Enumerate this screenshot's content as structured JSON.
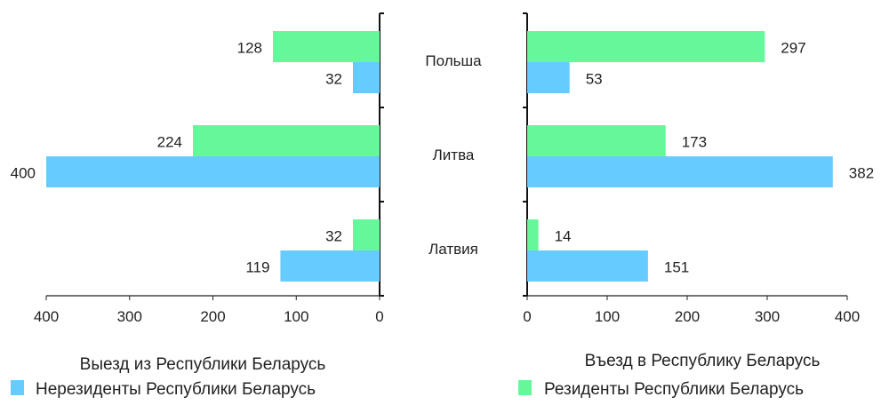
{
  "chart_data": [
    {
      "type": "bar",
      "orientation": "horizontal",
      "title": "Выезд из Республики Беларусь",
      "categories": [
        "Польша",
        "Литва",
        "Латвия"
      ],
      "series": [
        {
          "name": "Резиденты Республики Беларусь",
          "color": "#66f79a",
          "values": [
            128,
            224,
            32
          ]
        },
        {
          "name": "Нерезиденты Республики Беларусь",
          "color": "#66ccff",
          "values": [
            32,
            400,
            119
          ]
        }
      ],
      "xlim": [
        400,
        0
      ],
      "xticks": [
        "400",
        "300",
        "200",
        "100",
        "0"
      ],
      "direction": "reversed"
    },
    {
      "type": "bar",
      "orientation": "horizontal",
      "title": "Въезд в Республику Беларусь",
      "categories": [
        "Польша",
        "Литва",
        "Латвия"
      ],
      "series": [
        {
          "name": "Резиденты Республики Беларусь",
          "color": "#66f79a",
          "values": [
            297,
            173,
            14
          ]
        },
        {
          "name": "Нерезиденты Республики Беларусь",
          "color": "#66ccff",
          "values": [
            53,
            382,
            151
          ]
        }
      ],
      "xlim": [
        0,
        400
      ],
      "xticks": [
        "0",
        "100",
        "200",
        "300",
        "400"
      ]
    }
  ],
  "legend": {
    "left": {
      "label": "Нерезиденты Республики Беларусь",
      "color": "#66ccff"
    },
    "right": {
      "label": "Резиденты Республики Беларусь",
      "color": "#66f79a"
    }
  }
}
